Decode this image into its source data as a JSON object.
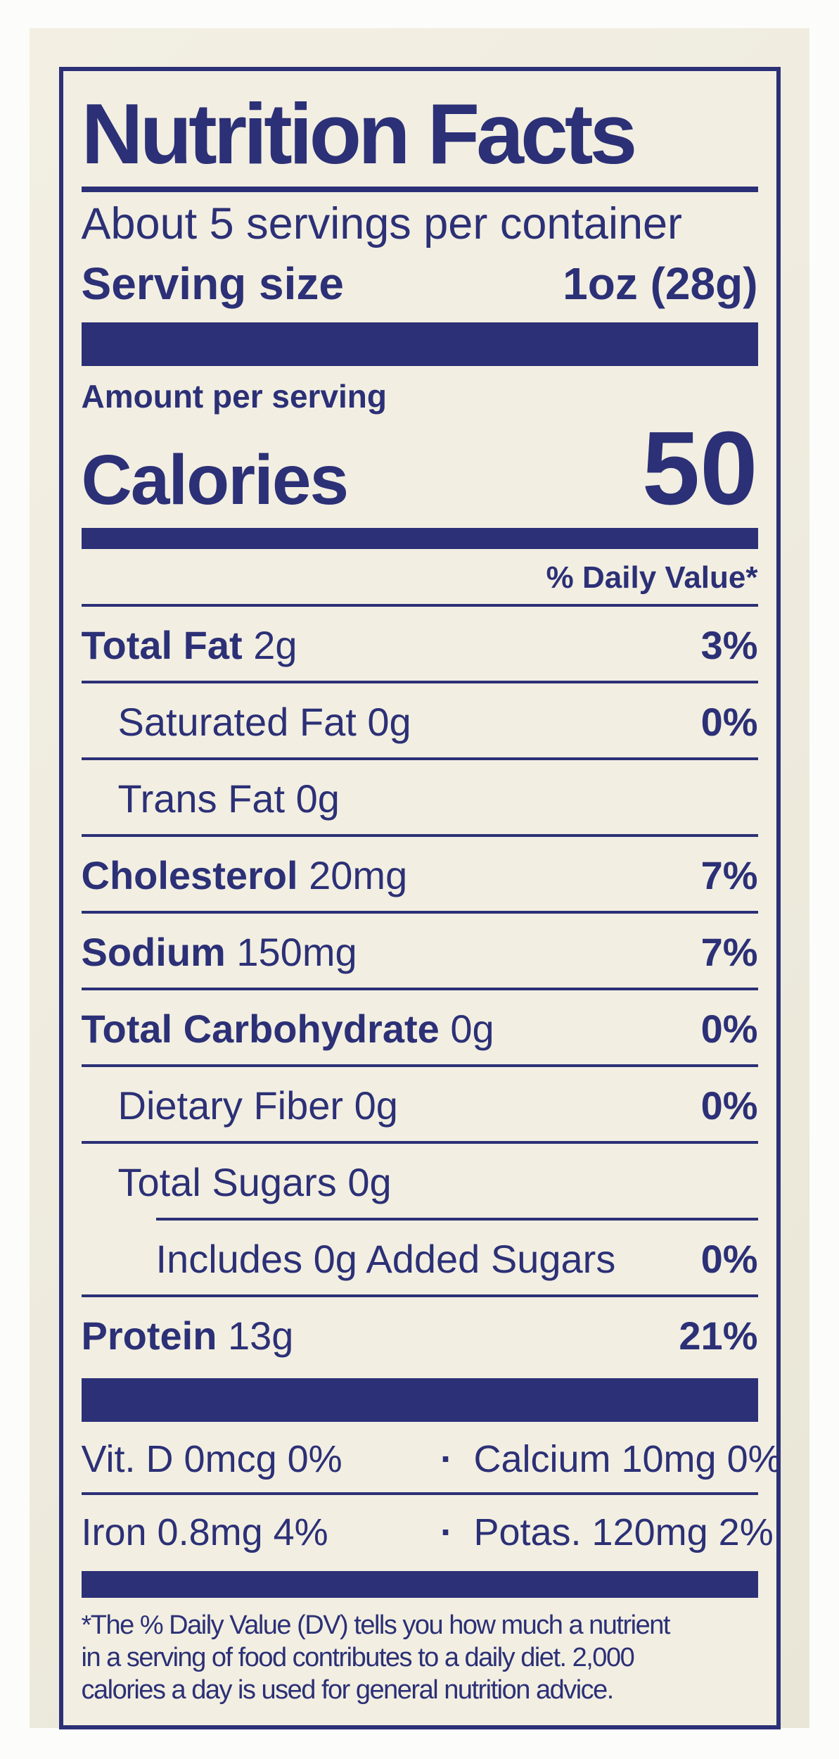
{
  "label": {
    "title": "Nutrition Facts",
    "servings_per_container": "About 5 servings per container",
    "serving_size_label": "Serving size",
    "serving_size_value": "1oz (28g)",
    "amount_per_serving": "Amount per serving",
    "calories_label": "Calories",
    "calories_value": "50",
    "daily_value_header": "% Daily Value*",
    "nutrients": [
      {
        "name": "Total Fat",
        "amount": "2g",
        "dv": "3%"
      },
      {
        "name": "Saturated Fat",
        "amount": "0g",
        "dv": "0%"
      },
      {
        "name": "Trans Fat",
        "amount": "0g",
        "dv": ""
      },
      {
        "name": "Cholesterol",
        "amount": "20mg",
        "dv": "7%"
      },
      {
        "name": "Sodium",
        "amount": "150mg",
        "dv": "7%"
      },
      {
        "name": "Total Carbohydrate",
        "amount": "0g",
        "dv": "0%"
      },
      {
        "name": "Dietary Fiber",
        "amount": "0g",
        "dv": "0%"
      },
      {
        "name": "Total Sugars",
        "amount": "0g",
        "dv": ""
      },
      {
        "name": "Includes 0g Added Sugars",
        "amount": "",
        "dv": "0%"
      },
      {
        "name": "Protein",
        "amount": "13g",
        "dv": "21%"
      }
    ],
    "separator_dot": "·",
    "micronutrients": [
      {
        "left": "Vit. D 0mcg 0%",
        "right": "Calcium 10mg 0%"
      },
      {
        "left": "Iron 0.8mg 4%",
        "right": "Potas. 120mg 2%"
      }
    ],
    "footnote_lines": [
      "*The % Daily Value (DV) tells you how much a nutrient",
      "in a serving of food contributes to a daily diet. 2,000",
      "calories a day is used for general nutrition advice."
    ],
    "colors": {
      "ink_navy": "#2c3076",
      "label_cream": "#f2efe2",
      "bottle_cream": "#edeadc",
      "photo_white": "#fcfcfa"
    }
  }
}
